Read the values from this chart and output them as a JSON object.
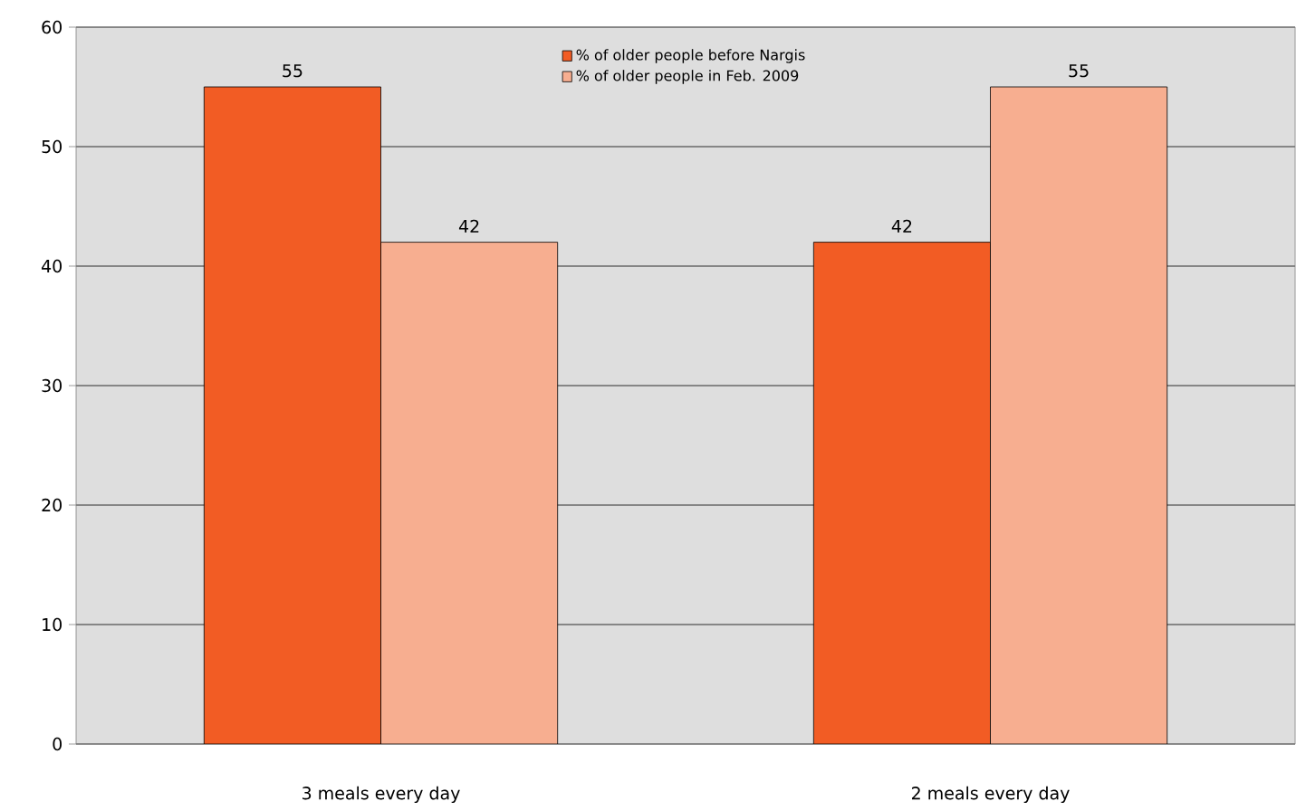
{
  "chart_data": {
    "type": "bar",
    "categories": [
      "3 meals every day",
      "2 meals every day"
    ],
    "series": [
      {
        "name": "% of older people before Nargis",
        "color": "#f25c24",
        "values": [
          55,
          42
        ]
      },
      {
        "name": "% of older people in Feb. 2009",
        "color": "#f7ae90",
        "values": [
          42,
          55
        ]
      }
    ],
    "ylim": [
      0,
      60
    ],
    "yticks": [
      0,
      10,
      20,
      30,
      40,
      50,
      60
    ],
    "grid": "y",
    "legend": "top",
    "data_labels": true
  }
}
